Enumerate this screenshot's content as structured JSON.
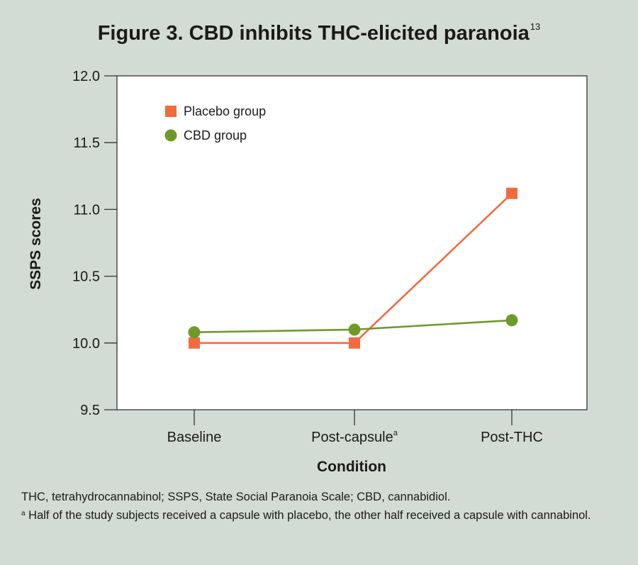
{
  "title": "Figure 3. CBD inhibits THC-elicited paranoia",
  "title_ref": "13",
  "chart_data": {
    "type": "line",
    "xlabel": "Condition",
    "ylabel": "SSPS scores",
    "categories": [
      "Baseline",
      "Post-capsule",
      "Post-THC"
    ],
    "category_marks": [
      "",
      "a",
      ""
    ],
    "ylim": [
      9.5,
      12.0
    ],
    "yticks": [
      9.5,
      10.0,
      10.5,
      11.0,
      11.5,
      12.0
    ],
    "ytick_labels": [
      "9.5",
      "10.0",
      "10.5",
      "11.0",
      "11.5",
      "12.0"
    ],
    "legend_position": "top-left",
    "series": [
      {
        "name": "Placebo group",
        "marker": "square",
        "color": "#f26b3e",
        "values": [
          10.0,
          10.0,
          11.12
        ]
      },
      {
        "name": "CBD group",
        "marker": "circle",
        "color": "#6f9a2a",
        "values": [
          10.08,
          10.1,
          10.17
        ]
      }
    ]
  },
  "footnotes": {
    "abbreviations": "THC, tetrahydrocannabinol; SSPS, State Social Paranoia Scale; CBD, cannabidiol.",
    "note_mark": "a",
    "note": "Half of the study subjects received a capsule with placebo, the other half received a capsule with cannabinol."
  }
}
